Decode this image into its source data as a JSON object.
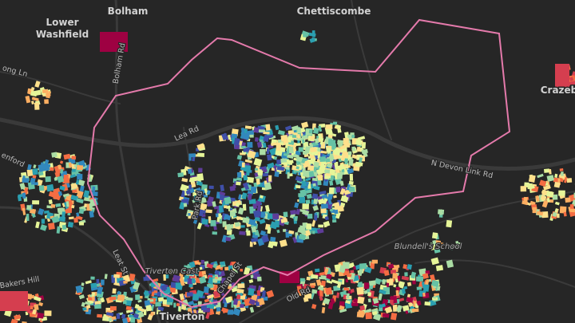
{
  "map": {
    "places": [
      "Lower",
      "Washfield",
      "Bolham",
      "Chettiscombe",
      "Crazeb",
      "Tiverton"
    ],
    "roads": [
      "Bolham Rd",
      "ong Ln",
      "Lea Rd",
      "Park Rd",
      "N Devon Link Rd",
      "Leat St",
      "Old Rd",
      "Chapel St",
      "Bakers Hill",
      "enford"
    ],
    "pois": [
      "Blundell's School",
      "Tiverton Cast"
    ]
  }
}
